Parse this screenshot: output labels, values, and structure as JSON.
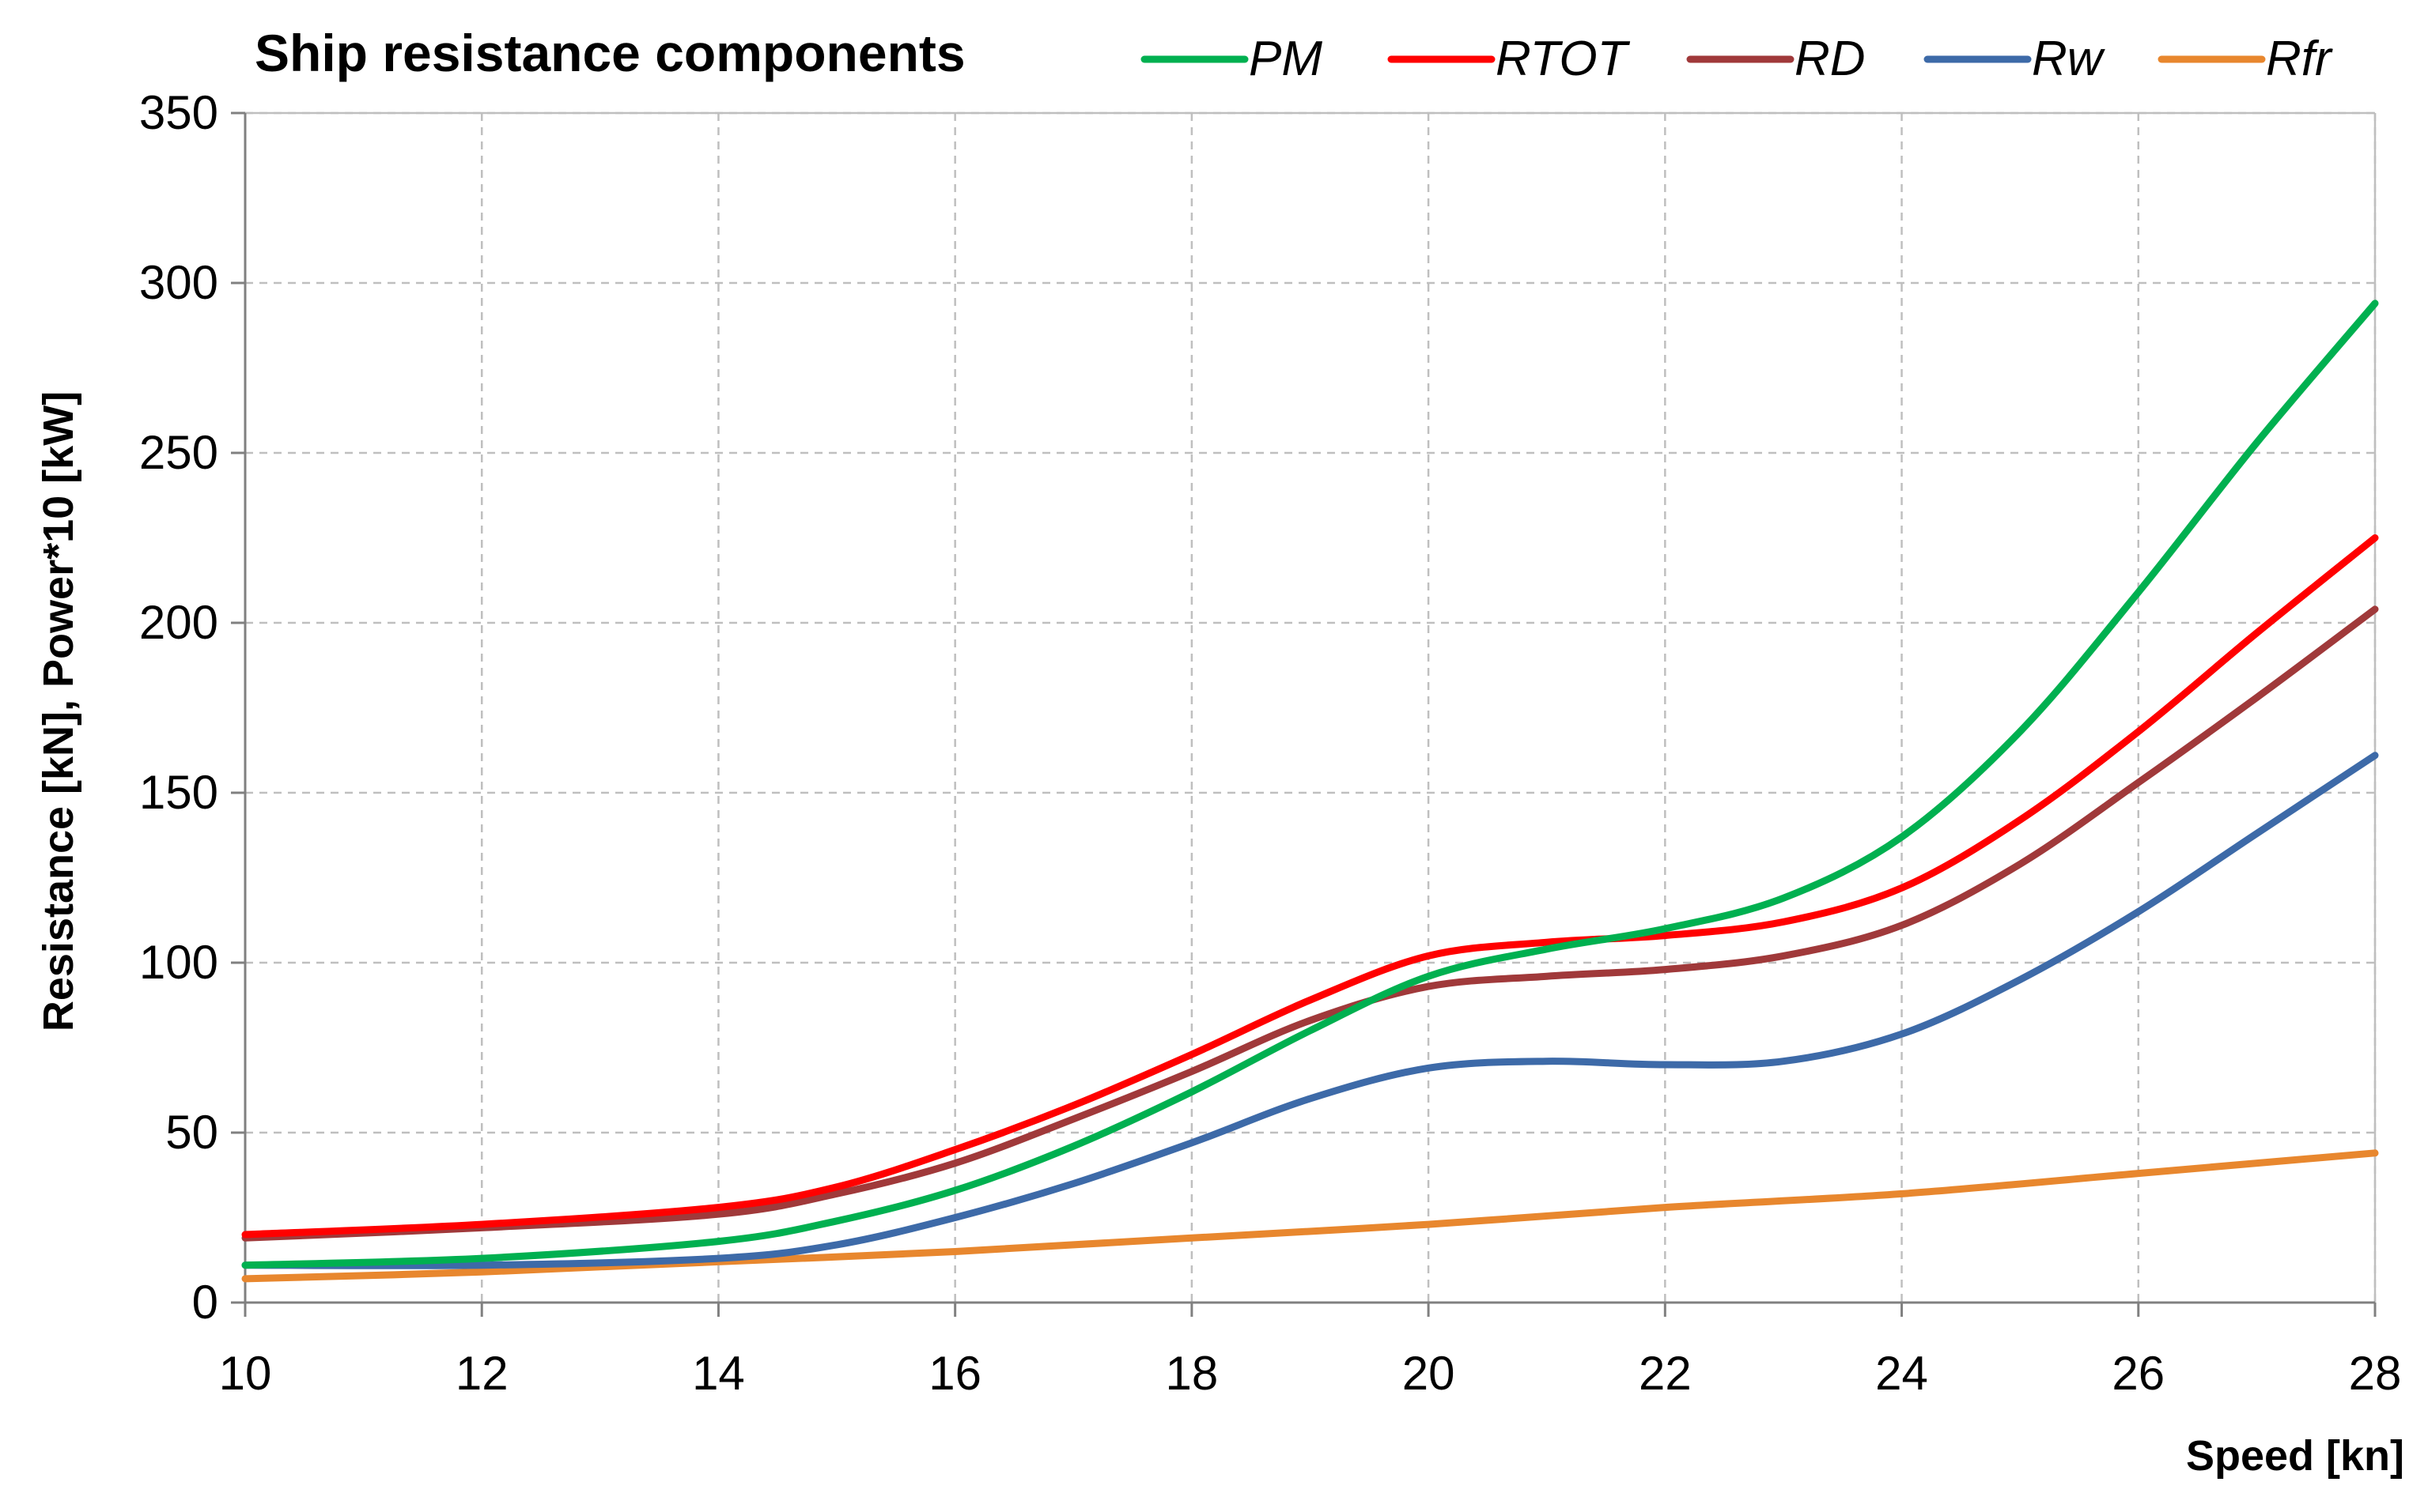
{
  "chart_data": {
    "type": "line",
    "title": "Ship resistance components",
    "xlabel": "Speed [kn]",
    "ylabel": "Resistance [kN],  Power*10 [kW]",
    "xlim": [
      10,
      28
    ],
    "ylim": [
      0,
      350
    ],
    "xticks": [
      10,
      12,
      14,
      16,
      18,
      20,
      22,
      24,
      26,
      28
    ],
    "yticks": [
      0,
      50,
      100,
      150,
      200,
      250,
      300,
      350
    ],
    "grid": true,
    "legend_position": "top",
    "series": [
      {
        "name": "PM",
        "color": "#00b050",
        "x": [
          10,
          12,
          14,
          15,
          16,
          17,
          18,
          19,
          20,
          21,
          22,
          23,
          24,
          25,
          26,
          27,
          28
        ],
        "y": [
          11,
          13,
          18,
          24,
          33,
          46,
          62,
          80,
          96,
          104,
          110,
          119,
          137,
          168,
          209,
          253,
          294
        ]
      },
      {
        "name": "RTOT",
        "color": "#ff0000",
        "x": [
          10,
          12,
          14,
          15,
          16,
          17,
          18,
          19,
          20,
          21,
          22,
          23,
          24,
          25,
          26,
          27,
          28
        ],
        "y": [
          20,
          23,
          28,
          34,
          45,
          58,
          73,
          89,
          102,
          106,
          108,
          112,
          122,
          142,
          168,
          197,
          225
        ]
      },
      {
        "name": "RD",
        "color": "#a0393a",
        "x": [
          10,
          12,
          14,
          15,
          16,
          17,
          18,
          19,
          20,
          21,
          22,
          23,
          24,
          25,
          26,
          27,
          28
        ],
        "y": [
          19,
          22,
          26,
          32,
          41,
          54,
          68,
          83,
          93,
          96,
          98,
          102,
          111,
          129,
          153,
          178,
          204
        ]
      },
      {
        "name": "Rw",
        "color": "#3d6aa8",
        "x": [
          10,
          12,
          14,
          15,
          16,
          17,
          18,
          19,
          20,
          21,
          22,
          23,
          24,
          25,
          26,
          27,
          28
        ],
        "y": [
          11,
          11,
          13,
          17,
          25,
          35,
          47,
          60,
          69,
          71,
          70,
          71,
          79,
          95,
          115,
          138,
          161
        ]
      },
      {
        "name": "Rfr",
        "color": "#e8872e",
        "x": [
          10,
          12,
          14,
          16,
          18,
          20,
          22,
          24,
          26,
          28
        ],
        "y": [
          7,
          9,
          12,
          15,
          19,
          23,
          28,
          32,
          38,
          44
        ]
      }
    ]
  }
}
